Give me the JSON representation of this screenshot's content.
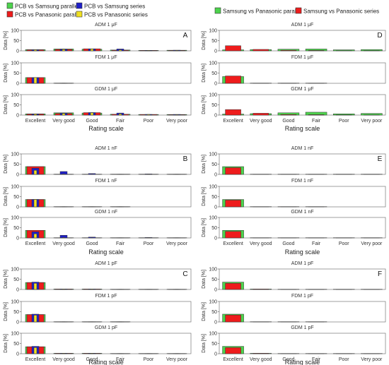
{
  "legend_left": [
    {
      "name": "PCB vs Samsung parallel",
      "color": "#4dd34d"
    },
    {
      "name": "PCB vs Samsung series",
      "color": "#1f1fc8"
    },
    {
      "name": "PCB vs Panasonic parallel",
      "color": "#ee1c1c"
    },
    {
      "name": "PCB vs Panasonic series",
      "color": "#f0e020"
    }
  ],
  "legend_right": [
    {
      "name": "Samsung vs Panasonic parallel",
      "color": "#4dd34d"
    },
    {
      "name": "Samsung vs Panasonic series",
      "color": "#ee1c1c"
    }
  ],
  "chart_data": [
    {
      "type": "bar",
      "panel": "A",
      "title": "ADM 1 μF",
      "ylabel": "Data [%]",
      "ylim": [
        0,
        100
      ],
      "yticks": [
        0,
        50,
        100
      ],
      "categories": [
        "Excellent",
        "Very good",
        "Good",
        "Fair",
        "Poor",
        "Very poor"
      ],
      "series": [
        {
          "name": "PCB vs Samsung parallel",
          "values": [
            6,
            9,
            8,
            4,
            2,
            3
          ]
        },
        {
          "name": "PCB vs Samsung series",
          "values": [
            5,
            8,
            9,
            9,
            2,
            3
          ]
        },
        {
          "name": "PCB vs Panasonic parallel",
          "values": [
            5,
            7,
            10,
            3,
            2,
            2
          ]
        },
        {
          "name": "PCB vs Panasonic series",
          "values": [
            5,
            7,
            9,
            5,
            2,
            2
          ]
        }
      ]
    },
    {
      "type": "bar",
      "panel": "",
      "title": "FDM 1 μF",
      "ylabel": "Data [%]",
      "ylim": [
        0,
        100
      ],
      "yticks": [
        0,
        50,
        100
      ],
      "categories": [
        "Excellent",
        "Very good",
        "Good",
        "Fair",
        "Poor",
        "Very poor"
      ],
      "series": [
        {
          "name": "PCB vs Samsung parallel",
          "values": [
            28,
            1,
            0,
            0,
            0,
            0
          ]
        },
        {
          "name": "PCB vs Samsung series",
          "values": [
            28,
            1,
            0,
            0,
            0,
            0
          ]
        },
        {
          "name": "PCB vs Panasonic parallel",
          "values": [
            28,
            1,
            0,
            0,
            0,
            0
          ]
        },
        {
          "name": "PCB vs Panasonic series",
          "values": [
            28,
            1,
            0,
            0,
            0,
            0
          ]
        }
      ]
    },
    {
      "type": "bar",
      "panel": "",
      "title": "GDM 1 μF",
      "ylabel": "Data [%]",
      "ylim": [
        0,
        100
      ],
      "yticks": [
        0,
        50,
        100
      ],
      "categories": [
        "Excellent",
        "Very good",
        "Good",
        "Fair",
        "Poor",
        "Very poor"
      ],
      "series": [
        {
          "name": "PCB vs Samsung parallel",
          "values": [
            6,
            11,
            10,
            4,
            3,
            3
          ]
        },
        {
          "name": "PCB vs Samsung series",
          "values": [
            5,
            9,
            12,
            10,
            3,
            3
          ]
        },
        {
          "name": "PCB vs Panasonic parallel",
          "values": [
            5,
            8,
            12,
            4,
            3,
            2
          ]
        },
        {
          "name": "PCB vs Panasonic series",
          "values": [
            5,
            8,
            11,
            6,
            3,
            2
          ]
        }
      ]
    },
    {
      "type": "bar",
      "panel": "B",
      "title": "ADM 1 nF",
      "ylabel": "Data [%]",
      "ylim": [
        0,
        100
      ],
      "yticks": [
        0,
        50,
        100
      ],
      "categories": [
        "Excellent",
        "Very good",
        "Good",
        "Fair",
        "Poor",
        "Very poor"
      ],
      "series": [
        {
          "name": "PCB vs Samsung parallel",
          "values": [
            38,
            1,
            1,
            1,
            1,
            1
          ]
        },
        {
          "name": "PCB vs Samsung series",
          "values": [
            30,
            14,
            4,
            1,
            2,
            1
          ]
        },
        {
          "name": "PCB vs Panasonic parallel",
          "values": [
            38,
            1,
            1,
            1,
            1,
            1
          ]
        },
        {
          "name": "PCB vs Panasonic series",
          "values": [
            20,
            2,
            1,
            1,
            1,
            1
          ]
        }
      ]
    },
    {
      "type": "bar",
      "panel": "",
      "title": "FDM 1 nF",
      "ylabel": "Data [%]",
      "ylim": [
        0,
        100
      ],
      "yticks": [
        0,
        50,
        100
      ],
      "categories": [
        "Excellent",
        "Very good",
        "Good",
        "Fair",
        "Poor",
        "Very poor"
      ],
      "series": [
        {
          "name": "PCB vs Samsung parallel",
          "values": [
            36,
            1,
            1,
            1,
            0,
            0
          ]
        },
        {
          "name": "PCB vs Samsung series",
          "values": [
            36,
            1,
            1,
            1,
            0,
            0
          ]
        },
        {
          "name": "PCB vs Panasonic parallel",
          "values": [
            36,
            1,
            1,
            1,
            0,
            0
          ]
        },
        {
          "name": "PCB vs Panasonic series",
          "values": [
            36,
            1,
            1,
            1,
            0,
            0
          ]
        }
      ]
    },
    {
      "type": "bar",
      "panel": "",
      "title": "GDM 1 nF",
      "ylabel": "Data [%]",
      "ylim": [
        0,
        100
      ],
      "yticks": [
        0,
        50,
        100
      ],
      "categories": [
        "Excellent",
        "Very good",
        "Good",
        "Fair",
        "Poor",
        "Very poor"
      ],
      "series": [
        {
          "name": "PCB vs Samsung parallel",
          "values": [
            37,
            1,
            1,
            1,
            1,
            1
          ]
        },
        {
          "name": "PCB vs Samsung series",
          "values": [
            30,
            13,
            4,
            1,
            2,
            1
          ]
        },
        {
          "name": "PCB vs Panasonic parallel",
          "values": [
            37,
            1,
            1,
            1,
            1,
            1
          ]
        },
        {
          "name": "PCB vs Panasonic series",
          "values": [
            20,
            2,
            1,
            1,
            1,
            1
          ]
        }
      ]
    },
    {
      "type": "bar",
      "panel": "C",
      "title": "ADM 1 pF",
      "ylabel": "Data [%]",
      "ylim": [
        0,
        100
      ],
      "yticks": [
        0,
        50,
        100
      ],
      "categories": [
        "Excellent",
        "Very good",
        "Good",
        "Fair",
        "Poor",
        "Very poor"
      ],
      "series": [
        {
          "name": "PCB vs Samsung parallel",
          "values": [
            34,
            2,
            2,
            1,
            1,
            1
          ]
        },
        {
          "name": "PCB vs Samsung series",
          "values": [
            36,
            2,
            2,
            1,
            1,
            1
          ]
        },
        {
          "name": "PCB vs Panasonic parallel",
          "values": [
            34,
            2,
            2,
            1,
            1,
            1
          ]
        },
        {
          "name": "PCB vs Panasonic series",
          "values": [
            30,
            2,
            2,
            1,
            1,
            1
          ]
        }
      ]
    },
    {
      "type": "bar",
      "panel": "",
      "title": "FDM 1 pF",
      "ylabel": "Data [%]",
      "ylim": [
        0,
        100
      ],
      "yticks": [
        0,
        50,
        100
      ],
      "categories": [
        "Excellent",
        "Very good",
        "Good",
        "Fair",
        "Poor",
        "Very poor"
      ],
      "series": [
        {
          "name": "PCB vs Samsung parallel",
          "values": [
            36,
            1,
            1,
            1,
            0,
            0
          ]
        },
        {
          "name": "PCB vs Samsung series",
          "values": [
            38,
            1,
            1,
            1,
            0,
            0
          ]
        },
        {
          "name": "PCB vs Panasonic parallel",
          "values": [
            36,
            1,
            1,
            1,
            0,
            0
          ]
        },
        {
          "name": "PCB vs Panasonic series",
          "values": [
            33,
            1,
            1,
            1,
            0,
            0
          ]
        }
      ]
    },
    {
      "type": "bar",
      "panel": "",
      "title": "GDM 1 pF",
      "ylabel": "Data [%]",
      "ylim": [
        0,
        100
      ],
      "yticks": [
        0,
        50,
        100
      ],
      "categories": [
        "Excellent",
        "Very good",
        "Good",
        "Fair",
        "Poor",
        "Very poor"
      ],
      "series": [
        {
          "name": "PCB vs Samsung parallel",
          "values": [
            34,
            2,
            2,
            1,
            1,
            1
          ]
        },
        {
          "name": "PCB vs Samsung series",
          "values": [
            36,
            2,
            2,
            1,
            1,
            1
          ]
        },
        {
          "name": "PCB vs Panasonic parallel",
          "values": [
            34,
            2,
            2,
            1,
            1,
            1
          ]
        },
        {
          "name": "PCB vs Panasonic series",
          "values": [
            30,
            2,
            2,
            1,
            1,
            1
          ]
        }
      ]
    },
    {
      "type": "bar",
      "panel": "D",
      "title": "ADM 1 μF",
      "ylabel": "Data [%]",
      "ylim": [
        0,
        100
      ],
      "yticks": [
        0,
        50,
        100
      ],
      "categories": [
        "Excellent",
        "Very good",
        "Good",
        "Fair",
        "Poor",
        "Very poor"
      ],
      "series": [
        {
          "name": "Samsung vs Panasonic parallel",
          "values": [
            5,
            6,
            8,
            9,
            5,
            6
          ]
        },
        {
          "name": "Samsung vs Panasonic series",
          "values": [
            25,
            7,
            3,
            2,
            1,
            1
          ]
        }
      ]
    },
    {
      "type": "bar",
      "panel": "",
      "title": "FDM 1 μF",
      "ylabel": "Data [%]",
      "ylim": [
        0,
        100
      ],
      "yticks": [
        0,
        50,
        100
      ],
      "categories": [
        "Excellent",
        "Very good",
        "Good",
        "Fair",
        "Poor",
        "Very poor"
      ],
      "series": [
        {
          "name": "Samsung vs Panasonic parallel",
          "values": [
            33,
            1,
            1,
            1,
            0,
            0
          ]
        },
        {
          "name": "Samsung vs Panasonic series",
          "values": [
            36,
            1,
            1,
            1,
            0,
            0
          ]
        }
      ]
    },
    {
      "type": "bar",
      "panel": "",
      "title": "GDM 1 μF",
      "ylabel": "Data [%]",
      "ylim": [
        0,
        100
      ],
      "yticks": [
        0,
        50,
        100
      ],
      "categories": [
        "Excellent",
        "Very good",
        "Good",
        "Fair",
        "Poor",
        "Very poor"
      ],
      "series": [
        {
          "name": "Samsung vs Panasonic parallel",
          "values": [
            5,
            7,
            11,
            14,
            6,
            8
          ]
        },
        {
          "name": "Samsung vs Panasonic series",
          "values": [
            27,
            9,
            3,
            2,
            1,
            1
          ]
        }
      ]
    },
    {
      "type": "bar",
      "panel": "E",
      "title": "ADM 1 nF",
      "ylabel": "Data [%]",
      "ylim": [
        0,
        100
      ],
      "yticks": [
        0,
        50,
        100
      ],
      "categories": [
        "Excellent",
        "Very good",
        "Good",
        "Fair",
        "Poor",
        "Very poor"
      ],
      "series": [
        {
          "name": "Samsung vs Panasonic parallel",
          "values": [
            38,
            1,
            1,
            1,
            1,
            1
          ]
        },
        {
          "name": "Samsung vs Panasonic series",
          "values": [
            33,
            1,
            1,
            1,
            1,
            1
          ]
        }
      ]
    },
    {
      "type": "bar",
      "panel": "",
      "title": "FDM 1 nF",
      "ylabel": "Data [%]",
      "ylim": [
        0,
        100
      ],
      "yticks": [
        0,
        50,
        100
      ],
      "categories": [
        "Excellent",
        "Very good",
        "Good",
        "Fair",
        "Poor",
        "Very poor"
      ],
      "series": [
        {
          "name": "Samsung vs Panasonic parallel",
          "values": [
            36,
            1,
            1,
            1,
            0,
            0
          ]
        },
        {
          "name": "Samsung vs Panasonic series",
          "values": [
            33,
            1,
            1,
            1,
            0,
            0
          ]
        }
      ]
    },
    {
      "type": "bar",
      "panel": "",
      "title": "GDM 1 nF",
      "ylabel": "Data [%]",
      "ylim": [
        0,
        100
      ],
      "yticks": [
        0,
        50,
        100
      ],
      "categories": [
        "Excellent",
        "Very good",
        "Good",
        "Fair",
        "Poor",
        "Very poor"
      ],
      "series": [
        {
          "name": "Samsung vs Panasonic parallel",
          "values": [
            37,
            1,
            1,
            1,
            1,
            1
          ]
        },
        {
          "name": "Samsung vs Panasonic series",
          "values": [
            32,
            1,
            1,
            1,
            1,
            1
          ]
        }
      ]
    },
    {
      "type": "bar",
      "panel": "F",
      "title": "ADM 1 pF",
      "ylabel": "Data [%]",
      "ylim": [
        0,
        100
      ],
      "yticks": [
        0,
        50,
        100
      ],
      "categories": [
        "Excellent",
        "Very good",
        "Good",
        "Fair",
        "Poor",
        "Very poor"
      ],
      "series": [
        {
          "name": "Samsung vs Panasonic parallel",
          "values": [
            36,
            2,
            1,
            1,
            1,
            1
          ]
        },
        {
          "name": "Samsung vs Panasonic series",
          "values": [
            30,
            2,
            1,
            1,
            1,
            1
          ]
        }
      ]
    },
    {
      "type": "bar",
      "panel": "",
      "title": "FDM 1 pF",
      "ylabel": "Data [%]",
      "ylim": [
        0,
        100
      ],
      "yticks": [
        0,
        50,
        100
      ],
      "categories": [
        "Excellent",
        "Very good",
        "Good",
        "Fair",
        "Poor",
        "Very poor"
      ],
      "series": [
        {
          "name": "Samsung vs Panasonic parallel",
          "values": [
            38,
            1,
            1,
            1,
            0,
            0
          ]
        },
        {
          "name": "Samsung vs Panasonic series",
          "values": [
            34,
            1,
            1,
            1,
            0,
            0
          ]
        }
      ]
    },
    {
      "type": "bar",
      "panel": "",
      "title": "GDM 1 pF",
      "ylabel": "Data [%]",
      "ylim": [
        0,
        100
      ],
      "yticks": [
        0,
        50,
        100
      ],
      "categories": [
        "Excellent",
        "Very good",
        "Good",
        "Fair",
        "Poor",
        "Very poor"
      ],
      "series": [
        {
          "name": "Samsung vs Panasonic parallel",
          "values": [
            36,
            2,
            1,
            1,
            1,
            1
          ]
        },
        {
          "name": "Samsung vs Panasonic series",
          "values": [
            30,
            2,
            1,
            1,
            1,
            1
          ]
        }
      ]
    }
  ],
  "xlabel": "Rating scale"
}
